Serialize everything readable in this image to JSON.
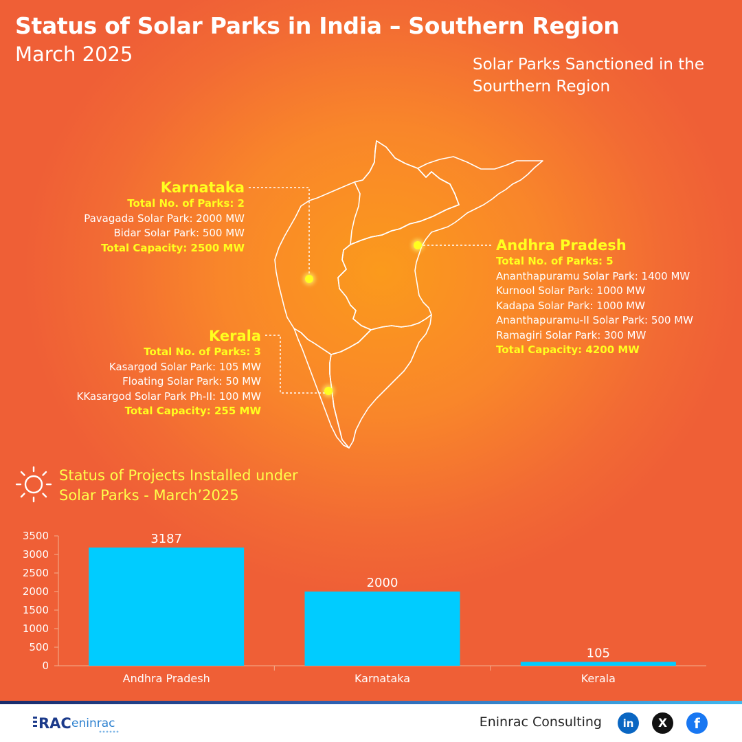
{
  "header": {
    "title": "Status of Solar Parks in India – Southern Region",
    "subtitle": "March 2025"
  },
  "map": {
    "caption": "Solar Parks Sanctioned in the Sourthern Region",
    "karnataka": {
      "state": "Karnataka",
      "parks_count": "Total No. of Parks: 2",
      "parks": [
        "Pavagada Solar Park: 2000 MW",
        "Bidar Solar Park: 500 MW"
      ],
      "total": "Total Capacity: 2500 MW"
    },
    "kerala": {
      "state": "Kerala",
      "parks_count": "Total No. of Parks: 3",
      "parks": [
        "Kasargod Solar Park: 105 MW",
        "Floating Solar Park: 50 MW",
        "KKasargod Solar Park Ph-II: 100 MW"
      ],
      "total": "Total Capacity: 255 MW"
    },
    "andhra": {
      "state": "Andhra Pradesh",
      "parks_count": "Total No. of Parks: 5",
      "parks": [
        "Ananthapuramu Solar Park: 1400 MW",
        "Kurnool Solar Park: 1000 MW",
        "Kadapa Solar Park: 1000 MW",
        "Ananthapuramu-II Solar Park: 500 MW",
        "Ramagiri Solar Park: 300 MW"
      ],
      "total": "Total Capacity: 4200 MW"
    }
  },
  "chart_title": "Status of Projects Installed under Solar Parks - March’2025",
  "chart_data": {
    "type": "bar",
    "title": "Status of Projects Installed under Solar Parks - March’2025",
    "categories": [
      "Andhra Pradesh",
      "Karnataka",
      "Kerala"
    ],
    "values": [
      3187,
      2000,
      105
    ],
    "yticks": [
      "0",
      "500",
      "1000",
      "1500",
      "2000",
      "2500",
      "3000",
      "3500"
    ],
    "ylim": [
      0,
      3500
    ],
    "bar_color": "#00ccff",
    "grid": false
  },
  "footer": {
    "logo_text": "RAC eninrac",
    "company": "Eninrac Consulting",
    "social": {
      "linkedin": "in",
      "x": "X",
      "facebook": "f"
    }
  },
  "colors": {
    "background": "#f26a34",
    "highlight": "#ffff1f",
    "bar": "#00ccff"
  }
}
